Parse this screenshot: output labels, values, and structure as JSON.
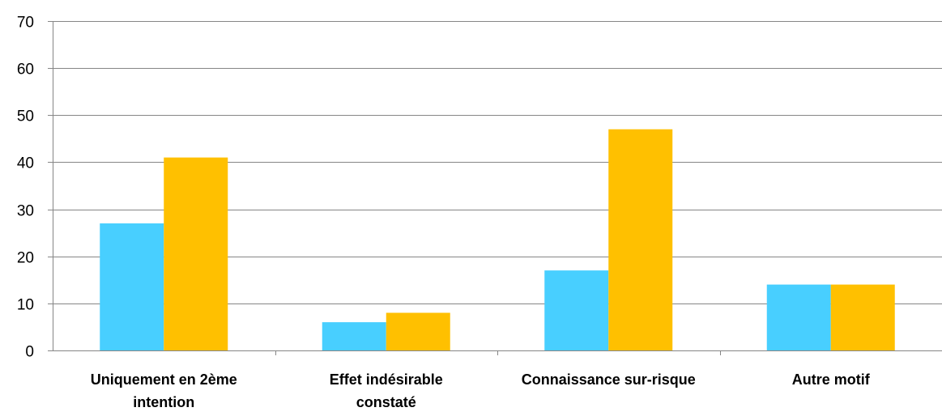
{
  "chart_data": {
    "type": "bar",
    "categories": [
      [
        "Uniquement en 2ème",
        "intention"
      ],
      [
        "Effet indésirable",
        "constaté"
      ],
      [
        "Connaissance sur-risque"
      ],
      [
        "Autre motif"
      ]
    ],
    "series": [
      {
        "values": [
          27,
          6,
          17,
          14
        ],
        "color": "#48CFFF"
      },
      {
        "values": [
          41,
          8,
          47,
          14
        ],
        "color": "#FFC000"
      }
    ],
    "ylim": [
      0,
      70
    ],
    "yticks": [
      0,
      10,
      20,
      30,
      40,
      50,
      60,
      70
    ],
    "grid": true,
    "legend": "none"
  }
}
